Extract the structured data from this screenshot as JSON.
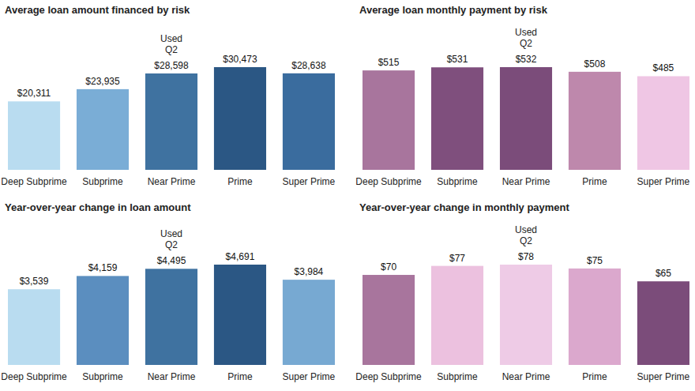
{
  "chart_data": [
    {
      "type": "bar",
      "title": "Average loan amount financed by risk",
      "annotation": "Used Q2",
      "categories": [
        "Deep Subprime",
        "Subprime",
        "Near Prime",
        "Prime",
        "Super Prime"
      ],
      "values": [
        20311,
        23935,
        28598,
        30473,
        28638
      ],
      "value_labels": [
        "$20,311",
        "$23,935",
        "$28,598",
        "$30,473",
        "$28,638"
      ],
      "colors": [
        "#b9dcf0",
        "#7aadd6",
        "#3f72a0",
        "#2b5784",
        "#3a6c9e"
      ],
      "data_labels": true,
      "tick_labels": false
    },
    {
      "type": "bar",
      "title": "Average loan monthly payment by risk",
      "annotation": "Used Q2",
      "categories": [
        "Deep Subprime",
        "Subprime",
        "Near Prime",
        "Prime",
        "Super Prime"
      ],
      "values": [
        515,
        531,
        532,
        508,
        485
      ],
      "value_labels": [
        "$515",
        "$531",
        "$532",
        "$508",
        "$485"
      ],
      "colors": [
        "#a8759d",
        "#7f4f7d",
        "#7b4c7a",
        "#be88ac",
        "#efc6e4"
      ],
      "data_labels": true,
      "tick_labels": false
    },
    {
      "type": "bar",
      "title": "Year-over-year change in loan amount",
      "annotation": "Used Q2",
      "categories": [
        "Deep Subprime",
        "Subprime",
        "Near Prime",
        "Prime",
        "Super Prime"
      ],
      "values": [
        3539,
        4159,
        4495,
        4691,
        3984
      ],
      "value_labels": [
        "$3,539",
        "$4,159",
        "$4,495",
        "$4,691",
        "$3,984"
      ],
      "colors": [
        "#b9dcf0",
        "#5b8ebf",
        "#3f72a0",
        "#2b5784",
        "#77a9d2"
      ],
      "data_labels": true,
      "tick_labels": false
    },
    {
      "type": "bar",
      "title": "Year-over-year change in monthly payment",
      "annotation": "Used Q2",
      "categories": [
        "Deep Subprime",
        "Subprime",
        "Near Prime",
        "Prime",
        "Super Prime"
      ],
      "values": [
        70,
        77,
        78,
        75,
        65
      ],
      "value_labels": [
        "$70",
        "$77",
        "$78",
        "$75",
        "$65"
      ],
      "colors": [
        "#a8759d",
        "#ecc1df",
        "#eecbe6",
        "#dba8cd",
        "#7b4c7a"
      ],
      "data_labels": true,
      "tick_labels": false
    }
  ]
}
